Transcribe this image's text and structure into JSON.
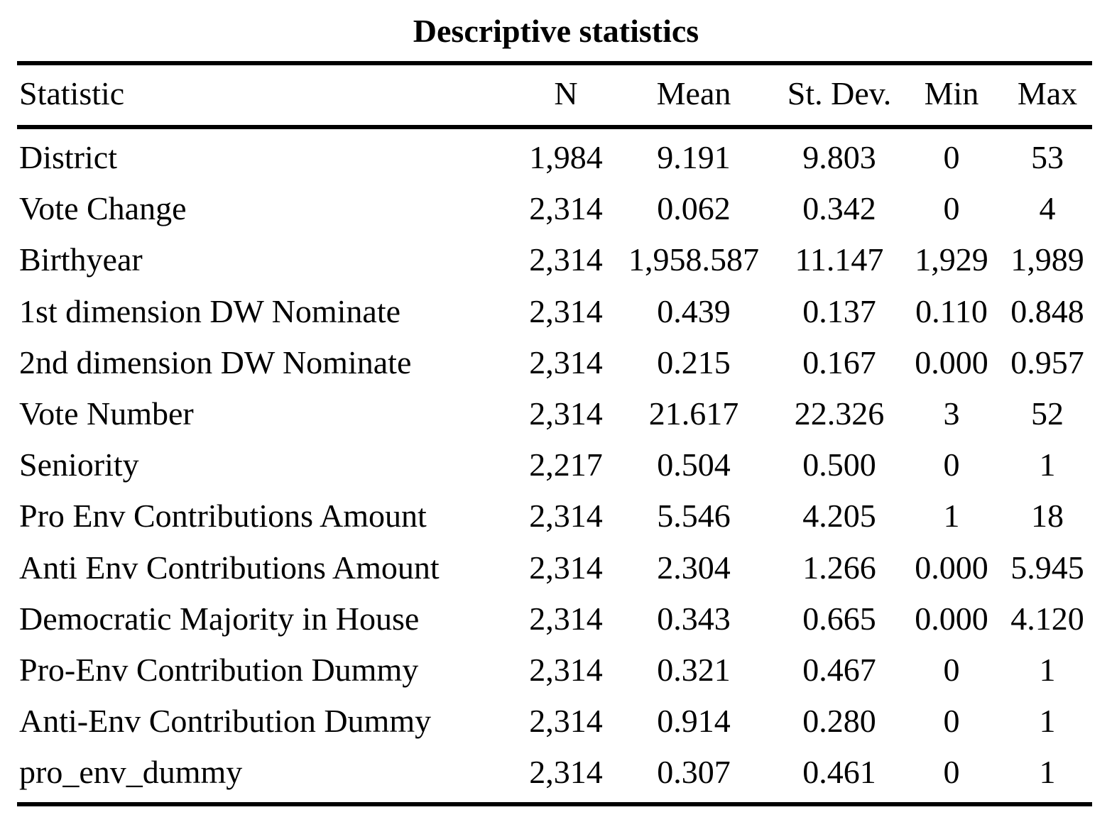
{
  "title": "Descriptive statistics",
  "columns": {
    "statistic": "Statistic",
    "n": "N",
    "mean": "Mean",
    "sd": "St. Dev.",
    "min": "Min",
    "max": "Max"
  },
  "rows": [
    {
      "name": "District",
      "n": "1,984",
      "mean": "9.191",
      "sd": "9.803",
      "min": "0",
      "max": "53"
    },
    {
      "name": "Vote Change",
      "n": "2,314",
      "mean": "0.062",
      "sd": "0.342",
      "min": "0",
      "max": "4"
    },
    {
      "name": "Birthyear",
      "n": "2,314",
      "mean": "1,958.587",
      "sd": "11.147",
      "min": "1,929",
      "max": "1,989"
    },
    {
      "name": "1st dimension DW Nominate",
      "n": "2,314",
      "mean": "0.439",
      "sd": "0.137",
      "min": "0.110",
      "max": "0.848"
    },
    {
      "name": "2nd dimension DW Nominate",
      "n": "2,314",
      "mean": "0.215",
      "sd": "0.167",
      "min": "0.000",
      "max": "0.957"
    },
    {
      "name": "Vote Number",
      "n": "2,314",
      "mean": "21.617",
      "sd": "22.326",
      "min": "3",
      "max": "52"
    },
    {
      "name": "Seniority",
      "n": "2,217",
      "mean": "0.504",
      "sd": "0.500",
      "min": "0",
      "max": "1"
    },
    {
      "name": "Pro Env Contributions Amount",
      "n": "2,314",
      "mean": "5.546",
      "sd": "4.205",
      "min": "1",
      "max": "18"
    },
    {
      "name": "Anti Env Contributions Amount",
      "n": "2,314",
      "mean": "2.304",
      "sd": "1.266",
      "min": "0.000",
      "max": "5.945"
    },
    {
      "name": "Democratic Majority in House",
      "n": "2,314",
      "mean": "0.343",
      "sd": "0.665",
      "min": "0.000",
      "max": "4.120"
    },
    {
      "name": "Pro-Env Contribution Dummy",
      "n": "2,314",
      "mean": "0.321",
      "sd": "0.467",
      "min": "0",
      "max": "1"
    },
    {
      "name": "Anti-Env Contribution Dummy",
      "n": "2,314",
      "mean": "0.914",
      "sd": "0.280",
      "min": "0",
      "max": "1"
    },
    {
      "name": "pro_env_dummy",
      "n": "2,314",
      "mean": "0.307",
      "sd": "0.461",
      "min": "0",
      "max": "1"
    }
  ]
}
